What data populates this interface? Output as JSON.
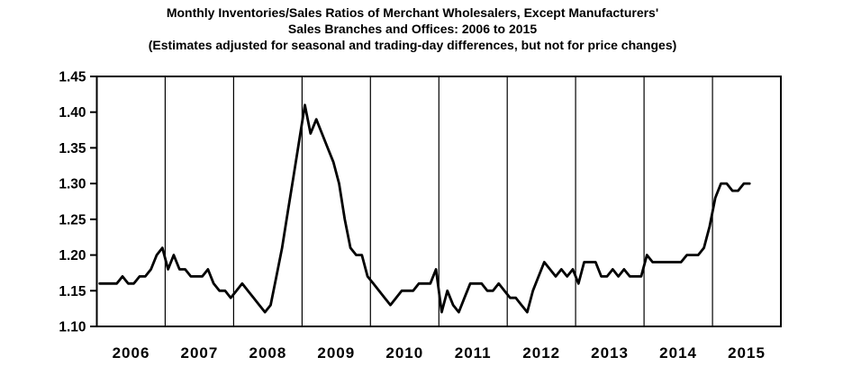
{
  "title": {
    "line1": "Monthly Inventories/Sales Ratios of Merchant Wholesalers, Except Manufacturers'",
    "line2": "Sales Branches and Offices: 2006 to 2015",
    "line3": "(Estimates adjusted for seasonal and trading-day differences, but not for price changes)"
  },
  "chart_data": {
    "type": "line",
    "title": "Monthly Inventories/Sales Ratios of Merchant Wholesalers, Except Manufacturers' Sales Branches and Offices: 2006 to 2015",
    "subtitle": "(Estimates adjusted for seasonal and trading-day differences, but not for price changes)",
    "ylim": [
      1.1,
      1.45
    ],
    "ytick_step": 0.05,
    "ytick_labels": [
      "1.45",
      "1.40",
      "1.35",
      "1.30",
      "1.25",
      "1.20",
      "1.15",
      "1.10"
    ],
    "x_years": [
      "2006",
      "2007",
      "2008",
      "2009",
      "2010",
      "2011",
      "2012",
      "2013",
      "2014",
      "2015"
    ],
    "grid": "vertical lines at year boundaries, black plot frame, no horizontal gridlines",
    "legend": "none",
    "line_color": "#000000",
    "background_color": "#ffffff",
    "series": [
      {
        "name": "Inventories/Sales ratio (monthly, seasonally adjusted)",
        "start_month": "2006-01",
        "end_month": "2015-07",
        "values_by_year": {
          "2006": [
            1.16,
            1.16,
            1.16,
            1.16,
            1.17,
            1.16,
            1.16,
            1.17,
            1.17,
            1.18,
            1.2,
            1.21
          ],
          "2007": [
            1.18,
            1.2,
            1.18,
            1.18,
            1.17,
            1.17,
            1.17,
            1.18,
            1.16,
            1.15,
            1.15,
            1.14
          ],
          "2008": [
            1.15,
            1.16,
            1.15,
            1.14,
            1.13,
            1.12,
            1.13,
            1.17,
            1.21,
            1.26,
            1.31,
            1.36
          ],
          "2009": [
            1.41,
            1.37,
            1.39,
            1.37,
            1.35,
            1.33,
            1.3,
            1.25,
            1.21,
            1.2,
            1.2,
            1.17
          ],
          "2010": [
            1.16,
            1.15,
            1.14,
            1.13,
            1.14,
            1.15,
            1.15,
            1.15,
            1.16,
            1.16,
            1.16,
            1.18
          ],
          "2011": [
            1.12,
            1.15,
            1.13,
            1.12,
            1.14,
            1.16,
            1.16,
            1.16,
            1.15,
            1.15,
            1.16,
            1.15
          ],
          "2012": [
            1.14,
            1.14,
            1.13,
            1.12,
            1.15,
            1.17,
            1.19,
            1.18,
            1.17,
            1.18,
            1.17,
            1.18
          ],
          "2013": [
            1.16,
            1.19,
            1.19,
            1.19,
            1.17,
            1.17,
            1.18,
            1.17,
            1.18,
            1.17,
            1.17,
            1.17
          ],
          "2014": [
            1.2,
            1.19,
            1.19,
            1.19,
            1.19,
            1.19,
            1.19,
            1.2,
            1.2,
            1.2,
            1.21,
            1.24
          ],
          "2015": [
            1.28,
            1.3,
            1.3,
            1.29,
            1.29,
            1.3,
            1.3
          ]
        }
      }
    ]
  }
}
